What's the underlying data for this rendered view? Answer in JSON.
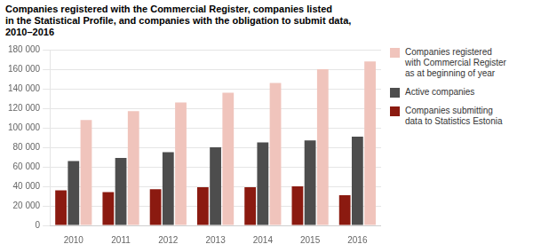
{
  "chart_data": {
    "type": "bar",
    "title": "Companies registered with the Commercial Register, companies listed\nin the Statistical Profile, and companies with the obligation to submit data,\n2010–2016",
    "categories": [
      "2010",
      "2011",
      "2012",
      "2013",
      "2014",
      "2015",
      "2016"
    ],
    "series": [
      {
        "name": "Companies registered\nwith Commercial Register\nas at beginning of year",
        "color": "#f0c4bc",
        "values": [
          108000,
          117000,
          126000,
          136000,
          146000,
          160000,
          168000
        ]
      },
      {
        "name": "Active companies",
        "color": "#4d4d4d",
        "values": [
          66000,
          69000,
          75000,
          80000,
          85000,
          87000,
          91000
        ]
      },
      {
        "name": "Companies submitting\ndata to Statistics Estonia",
        "color": "#8b1a10",
        "values": [
          36000,
          34000,
          37000,
          39000,
          39000,
          40000,
          31000
        ]
      }
    ],
    "ylim": [
      0,
      180000
    ],
    "yticks": [
      0,
      {
        "value": 20000,
        "label": "20 000"
      },
      {
        "value": 40000,
        "label": "40 000"
      },
      {
        "value": 60000,
        "label": "60 000"
      },
      {
        "value": 80000,
        "label": "80 000"
      },
      {
        "value": 100000,
        "label": "100 000"
      },
      {
        "value": 120000,
        "label": "120 000"
      },
      {
        "value": 140000,
        "label": "140 000"
      },
      {
        "value": 160000,
        "label": "160 000"
      },
      {
        "value": 180000,
        "label": "180 000"
      }
    ],
    "grid": true,
    "legend": "right"
  }
}
